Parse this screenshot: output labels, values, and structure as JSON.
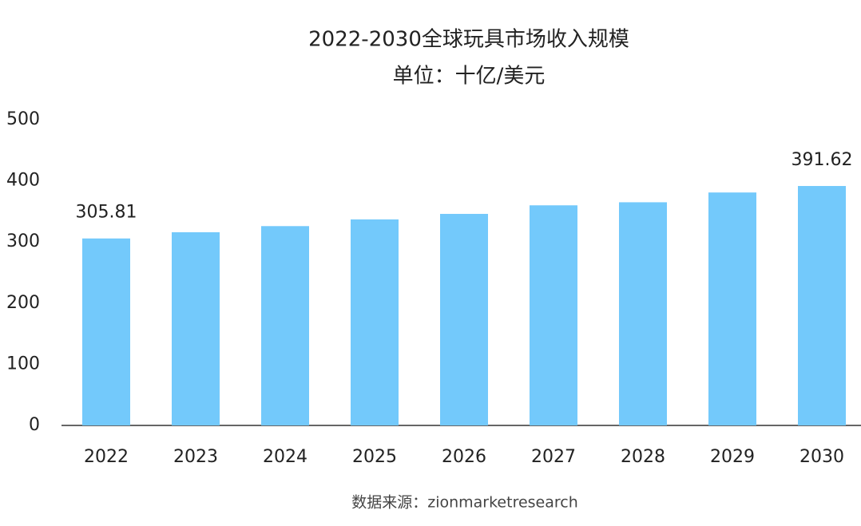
{
  "chart_data": {
    "type": "bar",
    "title": "2022-2030全球玩具市场收入规模",
    "subtitle": "单位：十亿/美元",
    "source": "数据来源：zionmarketresearch",
    "categories": [
      "2022",
      "2023",
      "2024",
      "2025",
      "2026",
      "2027",
      "2028",
      "2029",
      "2030"
    ],
    "values": [
      305.81,
      316,
      326,
      337,
      346,
      360,
      365,
      381,
      391.62
    ],
    "value_labels": [
      "305.81",
      null,
      null,
      null,
      null,
      null,
      null,
      null,
      "391.62"
    ],
    "color": "#73c9fb",
    "ylim": [
      0,
      500
    ],
    "yticks": [
      0,
      100,
      200,
      300,
      400,
      500
    ],
    "grid": false
  }
}
